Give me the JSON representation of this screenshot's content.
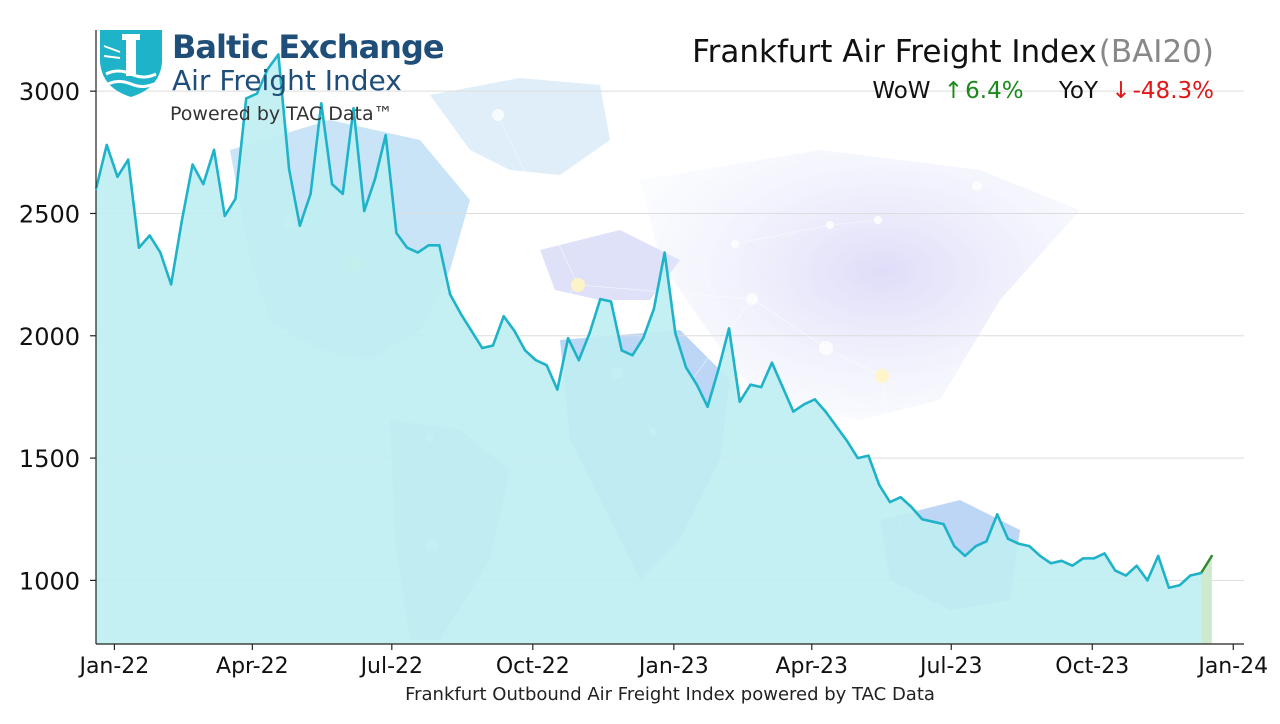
{
  "header": {
    "title": "Frankfurt Air Freight Index",
    "code": "(BAI20)",
    "wow_label": "WoW",
    "wow_arrow": "↑",
    "wow_value": "6.4%",
    "yoy_label": "YoY",
    "yoy_arrow": "↓",
    "yoy_value": "-48.3%",
    "up_color": "#1a8a1a",
    "down_color": "#e01818"
  },
  "logo": {
    "line1": "Baltic Exchange",
    "line2": "Air Freight Index",
    "line3": "Powered by TAC Data™",
    "brand_color": "#1f4e79",
    "accent_color": "#1fb3c9",
    "icon": "lighthouse-shield-icon"
  },
  "caption": "Frankfurt Outbound Air Freight Index powered by TAC Data",
  "chart_data": {
    "type": "area",
    "title": "Frankfurt Air Freight Index",
    "xlabel": "Frankfurt Outbound Air Freight Index powered by TAC Data",
    "ylabel": "",
    "ylim": [
      740,
      3250
    ],
    "yticks": [
      1000,
      1500,
      2000,
      2500,
      3000
    ],
    "ytick_labels": [
      "1000",
      "1500",
      "2000",
      "2500",
      "3000"
    ],
    "xticks": [
      "2022-01-01",
      "2022-04-01",
      "2022-07-01",
      "2022-10-01",
      "2023-01-01",
      "2023-04-01",
      "2023-07-01",
      "2023-10-01",
      "2024-01-01"
    ],
    "xtick_labels": [
      "Jan-22",
      "Apr-22",
      "Jul-22",
      "Oct-22",
      "Jan-23",
      "Apr-23",
      "Jul-23",
      "Oct-23",
      "Jan-24"
    ],
    "xlim": [
      "2021-12-20",
      "2024-01-08"
    ],
    "grid": true,
    "line_color": "#1fb3c9",
    "fill_color": "#bfeef2",
    "highlight_color": "#2e8b2e",
    "x": [
      "2021-12-20",
      "2021-12-27",
      "2022-01-03",
      "2022-01-10",
      "2022-01-17",
      "2022-01-24",
      "2022-01-31",
      "2022-02-07",
      "2022-02-14",
      "2022-02-21",
      "2022-02-28",
      "2022-03-07",
      "2022-03-14",
      "2022-03-21",
      "2022-03-28",
      "2022-04-04",
      "2022-04-11",
      "2022-04-18",
      "2022-04-25",
      "2022-05-02",
      "2022-05-09",
      "2022-05-16",
      "2022-05-23",
      "2022-05-30",
      "2022-06-06",
      "2022-06-13",
      "2022-06-20",
      "2022-06-27",
      "2022-07-04",
      "2022-07-11",
      "2022-07-18",
      "2022-07-25",
      "2022-08-01",
      "2022-08-08",
      "2022-08-15",
      "2022-08-22",
      "2022-08-29",
      "2022-09-05",
      "2022-09-12",
      "2022-09-19",
      "2022-09-26",
      "2022-10-03",
      "2022-10-10",
      "2022-10-17",
      "2022-10-24",
      "2022-10-31",
      "2022-11-07",
      "2022-11-14",
      "2022-11-21",
      "2022-11-28",
      "2022-12-05",
      "2022-12-12",
      "2022-12-19",
      "2022-12-26",
      "2023-01-02",
      "2023-01-09",
      "2023-01-16",
      "2023-01-23",
      "2023-01-30",
      "2023-02-06",
      "2023-02-13",
      "2023-02-20",
      "2023-02-27",
      "2023-03-06",
      "2023-03-13",
      "2023-03-20",
      "2023-03-27",
      "2023-04-03",
      "2023-04-10",
      "2023-04-17",
      "2023-04-24",
      "2023-05-01",
      "2023-05-08",
      "2023-05-15",
      "2023-05-22",
      "2023-05-29",
      "2023-06-05",
      "2023-06-12",
      "2023-06-19",
      "2023-06-26",
      "2023-07-03",
      "2023-07-10",
      "2023-07-17",
      "2023-07-24",
      "2023-07-31",
      "2023-08-07",
      "2023-08-14",
      "2023-08-21",
      "2023-08-28",
      "2023-09-04",
      "2023-09-11",
      "2023-09-18",
      "2023-09-25",
      "2023-10-02",
      "2023-10-09",
      "2023-10-16",
      "2023-10-23",
      "2023-10-30",
      "2023-11-06",
      "2023-11-13",
      "2023-11-20",
      "2023-11-27",
      "2023-12-04",
      "2023-12-11",
      "2023-12-18"
    ],
    "series": [
      {
        "values": [
          2600,
          2780,
          2650,
          2720,
          2360,
          2410,
          2340,
          2210,
          2470,
          2700,
          2620,
          2760,
          2490,
          2560,
          2970,
          2990,
          3090,
          3150,
          2680,
          2450,
          2580,
          2950,
          2620,
          2580,
          2930,
          2510,
          2640,
          2820,
          2420,
          2360,
          2340,
          2370,
          2370,
          2170,
          2090,
          2020,
          1950,
          1960,
          2080,
          2020,
          1940,
          1900,
          1880,
          1780,
          1990,
          1900,
          2010,
          2150,
          2140,
          1940,
          1920,
          1990,
          2110,
          2340,
          2010,
          1870,
          1800,
          1710,
          1860,
          2030,
          1730,
          1800,
          1790,
          1890,
          1790,
          1690,
          1720,
          1740,
          1690,
          1630,
          1570,
          1500,
          1510,
          1390,
          1320,
          1340,
          1300,
          1250,
          1240,
          1230,
          1140,
          1100,
          1140,
          1160,
          1270,
          1170,
          1150,
          1140,
          1100,
          1070,
          1080,
          1060,
          1090,
          1090,
          1110,
          1040,
          1020,
          1060,
          1000,
          1100,
          970,
          980,
          1020,
          1030,
          1100
        ]
      }
    ],
    "highlight_last_segment": true
  }
}
